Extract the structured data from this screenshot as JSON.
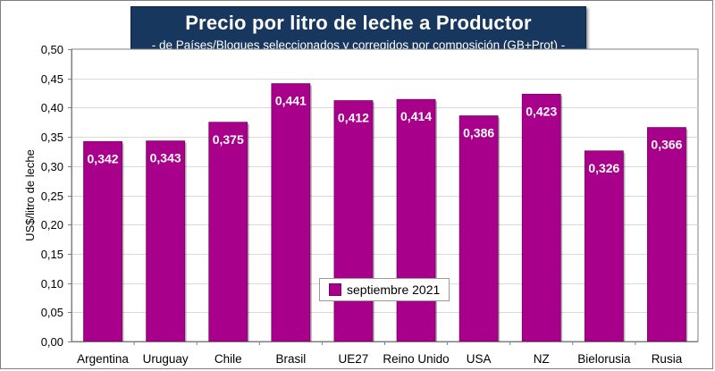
{
  "header": {
    "title": "Precio por litro de leche a Productor",
    "subtitle": "-  de Países/Bloques seleccionados y corregidos por composición (GB+Prot) -"
  },
  "colors": {
    "bar": "#a8008a",
    "title_bg": "#17375e",
    "plot_border": "#7f7f7f"
  },
  "chart_data": {
    "type": "bar",
    "title": "Precio por litro de leche a Productor",
    "subtitle": "-  de Países/Bloques seleccionados y corregidos por composición (GB+Prot) -",
    "xlabel": "",
    "ylabel": "US$/litro de leche",
    "ylim": [
      0,
      0.5
    ],
    "ytick_step": 0.05,
    "ytick_labels": [
      "0,00",
      "0,05",
      "0,10",
      "0,15",
      "0,20",
      "0,25",
      "0,30",
      "0,35",
      "0,40",
      "0,45",
      "0,50"
    ],
    "grid": true,
    "legend_position": "bottom-center inside",
    "categories": [
      "Argentina",
      "Uruguay",
      "Chile",
      "Brasil",
      "UE27",
      "Reino Unido",
      "USA",
      "NZ",
      "Bielorusia",
      "Rusia"
    ],
    "series": [
      {
        "name": "septiembre 2021",
        "values": [
          0.342,
          0.343,
          0.375,
          0.441,
          0.412,
          0.414,
          0.386,
          0.423,
          0.326,
          0.366
        ],
        "data_labels": [
          "0,342",
          "0,343",
          "0,375",
          "0,441",
          "0,412",
          "0,414",
          "0,386",
          "0,423",
          "0,326",
          "0,366"
        ]
      }
    ]
  }
}
